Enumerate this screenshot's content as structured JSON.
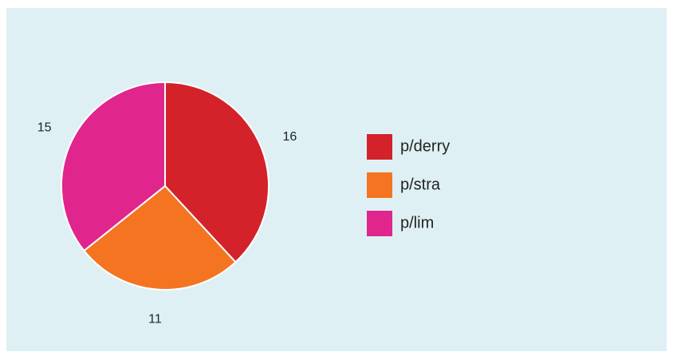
{
  "chart_data": {
    "type": "pie",
    "categories": [
      "p/derry",
      "p/stra",
      "p/lim"
    ],
    "values": [
      16,
      11,
      15
    ],
    "colors": [
      "#d3222a",
      "#f47421",
      "#e0258c"
    ],
    "start_angle": 0,
    "direction": "clockwise",
    "legend": "right"
  }
}
